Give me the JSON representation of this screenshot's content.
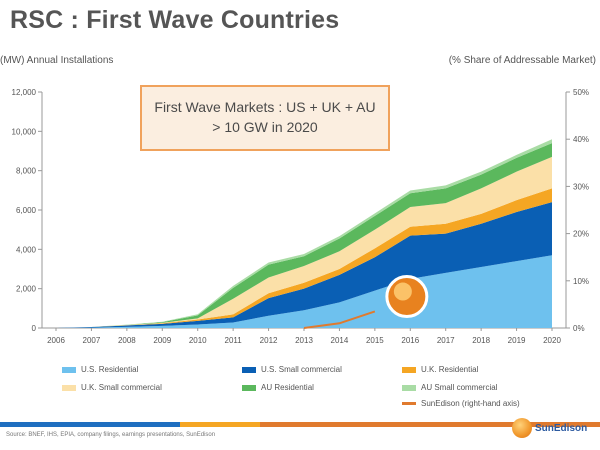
{
  "title": "RSC : First Wave Countries",
  "left_axis_title": "(MW) Annual Installations",
  "right_axis_title": "(% Share of Addressable Market)",
  "callout": {
    "line1": "First Wave Markets : US + UK + AU",
    "line2": "> 10 GW in 2020"
  },
  "source": "Source:  BNEF, IHS, EPIA, company filings, earnings presentations, SunEdison",
  "logo_text": "SunEdison",
  "chart_data": {
    "type": "area",
    "categories": [
      "2006",
      "2007",
      "2008",
      "2009",
      "2010",
      "2011",
      "2012",
      "2013",
      "2014",
      "2015",
      "2016",
      "2017",
      "2018",
      "2019",
      "2020"
    ],
    "yticks": [
      "0",
      "2,000",
      "4,000",
      "6,000",
      "8,000",
      "10,000",
      "12,000"
    ],
    "y2ticks": [
      "0%",
      "10%",
      "20%",
      "30%",
      "40%",
      "50%"
    ],
    "ylim": [
      0,
      12000
    ],
    "y2lim": [
      0,
      0.5
    ],
    "series": [
      {
        "name": "U.S. Residential",
        "color": "#6ec1ee",
        "values": [
          0,
          20,
          60,
          110,
          180,
          280,
          620,
          900,
          1300,
          1900,
          2500,
          2800,
          3100,
          3400,
          3700
        ]
      },
      {
        "name": "U.S. Small commercial",
        "color": "#0a5fb4",
        "values": [
          0,
          30,
          70,
          100,
          180,
          260,
          900,
          1100,
          1400,
          1700,
          2200,
          2000,
          2200,
          2500,
          2700
        ]
      },
      {
        "name": "U.K. Residential",
        "color": "#f5a623",
        "values": [
          0,
          0,
          10,
          30,
          70,
          150,
          250,
          300,
          300,
          450,
          450,
          500,
          500,
          600,
          700
        ]
      },
      {
        "name": "U.K. Small commercial",
        "color": "#fbe0a8",
        "values": [
          0,
          0,
          10,
          20,
          60,
          800,
          800,
          850,
          900,
          950,
          1000,
          1050,
          1300,
          1450,
          1600
        ]
      },
      {
        "name": "AU Residential",
        "color": "#5bb85d",
        "values": [
          0,
          0,
          10,
          40,
          150,
          550,
          650,
          500,
          650,
          700,
          700,
          750,
          700,
          700,
          700
        ]
      },
      {
        "name": "AU Small commercial",
        "color": "#a9dca5",
        "values": [
          0,
          0,
          10,
          20,
          60,
          100,
          110,
          110,
          120,
          130,
          140,
          150,
          150,
          150,
          200
        ]
      }
    ],
    "line_series": {
      "name": "SunEdison (right-hand axis)",
      "color": "#e07a2e",
      "axis": "right",
      "x": [
        "2013",
        "2014",
        "2015"
      ],
      "values": [
        0.0,
        0.01,
        0.035
      ]
    },
    "annotation": "SunEdison logo marker at 2015"
  }
}
